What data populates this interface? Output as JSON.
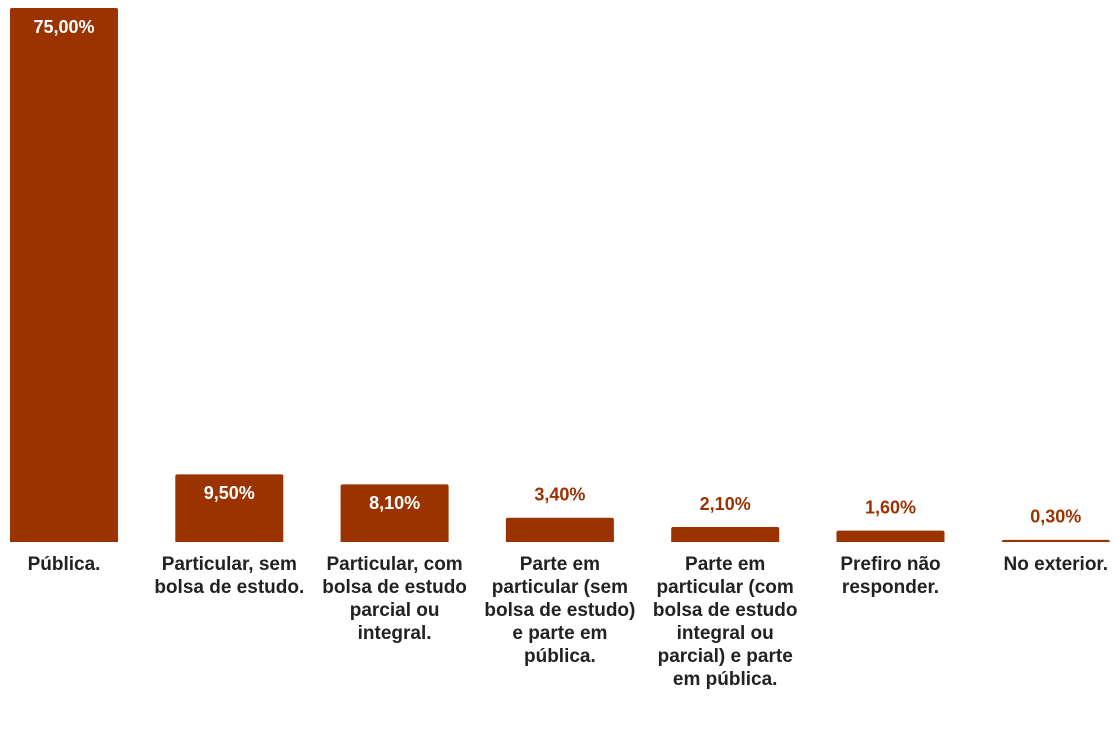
{
  "chart_data": {
    "type": "bar",
    "categories": [
      "Pública.",
      "Particular, sem bolsa de estudo.",
      "Particular, com bolsa de estudo parcial ou integral.",
      "Parte em particular (sem bolsa de estudo) e parte em pública.",
      "Parte em particular (com bolsa de estudo integral ou parcial) e parte em pública.",
      "Prefiro não responder.",
      "No exterior."
    ],
    "values": [
      75,
      9.5,
      8.1,
      3.4,
      2.1,
      1.6,
      0.3
    ],
    "value_labels": [
      "75,00%",
      "9,50%",
      "8,10%",
      "3,40%",
      "2,10%",
      "1,60%",
      "0,30%"
    ],
    "color": "#9a3300"
  }
}
